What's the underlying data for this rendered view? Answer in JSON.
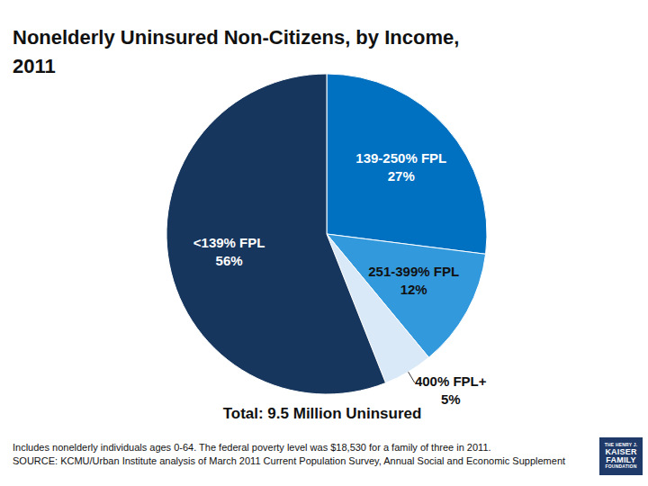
{
  "chart_data": {
    "type": "pie",
    "title": "Nonelderly Uninsured Non-Citizens, by Income, 2011",
    "categories": [
      "139-250% FPL",
      "251-399% FPL",
      "400% FPL+",
      "<139% FPL"
    ],
    "values": [
      27,
      12,
      5,
      56
    ],
    "value_labels": [
      "27%",
      "12%",
      "5%",
      "56%"
    ],
    "colors": [
      "#0070c0",
      "#3399dd",
      "#d9e9f7",
      "#17365d"
    ],
    "data_labels": true,
    "annotations": [
      "Total: 9.5 Million Uninsured"
    ],
    "notes": [
      "Includes nonelderly individuals ages 0-64. The federal poverty level was  $18,530 for a family of three in 2011.",
      "SOURCE: KCMU/Urban Institute analysis of March 2011 Current Population Survey, Annual Social and Economic Supplement"
    ],
    "logo": [
      "THE HENRY J.",
      "KAISER",
      "FAMILY",
      "FOUNDATION"
    ]
  }
}
